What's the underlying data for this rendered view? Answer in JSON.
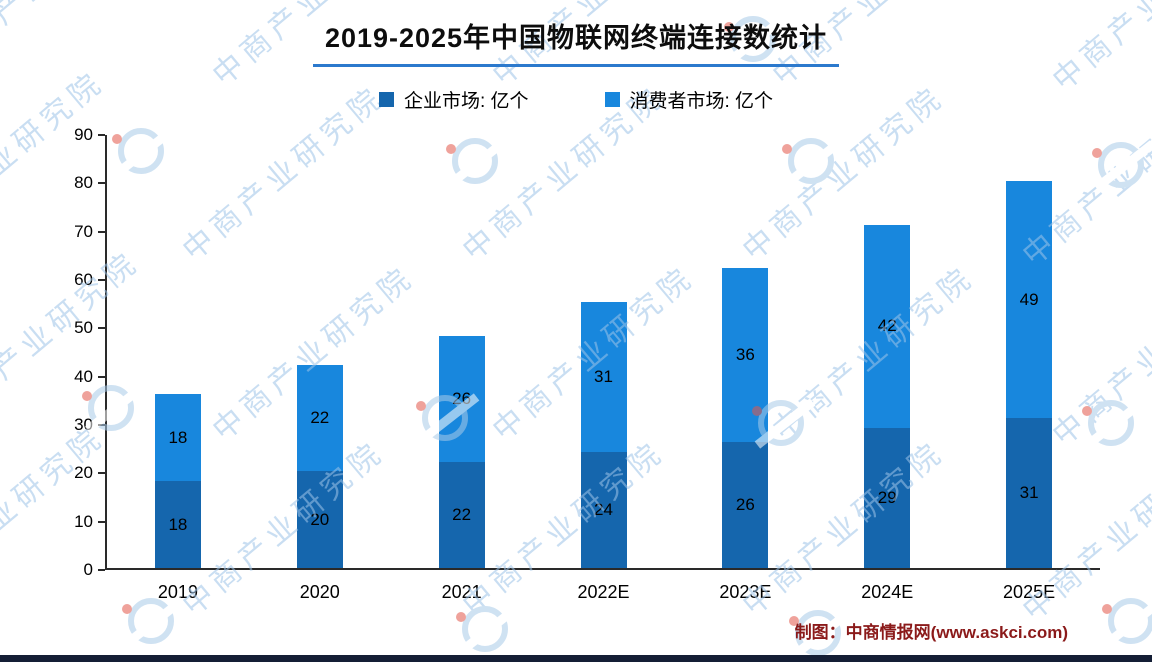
{
  "page": {
    "title": "2019-2025年中国物联网终端连接数统计",
    "footer_credit": "制图：中商情报网(www.askci.com)",
    "watermark_text": "中商产业研究院",
    "colors": {
      "enterprise_series": "#1566ad",
      "consumer_series": "#1887dd",
      "title_underline": "#2b79cd",
      "footer_text": "#8b1a1a",
      "watermark": "#9ec4e8",
      "bottom_bar": "#141e35",
      "axis": "#2a2a2a"
    }
  },
  "chart_data": {
    "type": "bar",
    "stacked": true,
    "title": "2019-2025年中国物联网终端连接数统计",
    "categories": [
      "2019",
      "2020",
      "2021",
      "2022E",
      "2023E",
      "2024E",
      "2025E"
    ],
    "series": [
      {
        "name": "企业市场: 亿个",
        "values": [
          18,
          20,
          22,
          24,
          26,
          29,
          31
        ],
        "color": "#1566ad"
      },
      {
        "name": "消费者市场: 亿个",
        "values": [
          18,
          22,
          26,
          31,
          36,
          42,
          49
        ],
        "color": "#1887dd"
      }
    ],
    "totals": [
      36,
      42,
      48,
      55,
      62,
      71,
      80
    ],
    "xlabel": "",
    "ylabel": "",
    "ylim": [
      0,
      90
    ],
    "yticks": [
      0,
      10,
      20,
      30,
      40,
      50,
      60,
      70,
      80,
      90
    ],
    "grid": false,
    "legend_position": "top",
    "value_labels": "inside-center"
  }
}
